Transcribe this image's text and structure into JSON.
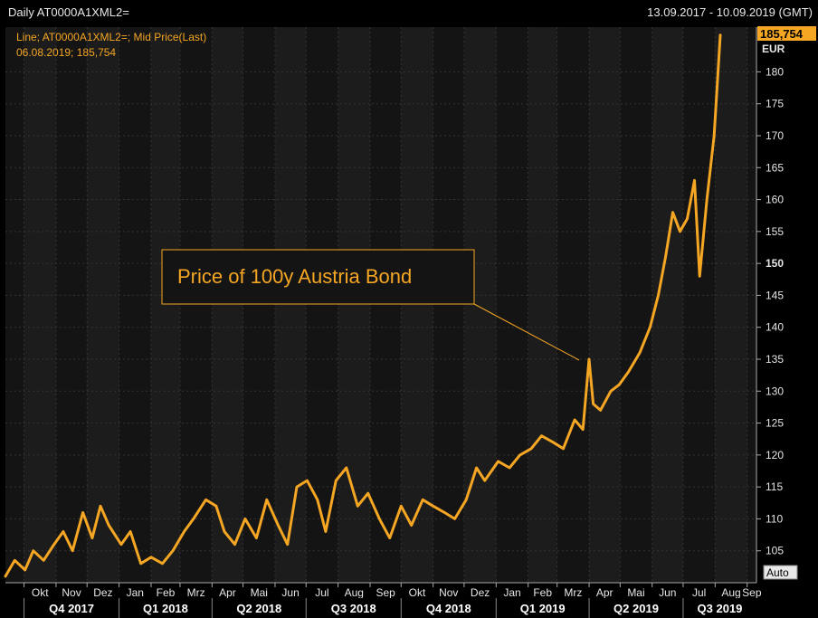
{
  "header": {
    "title": "Daily AT0000A1XML2=",
    "date_range": "13.09.2017 - 10.09.2019 (GMT)"
  },
  "legend": {
    "line1": "Line; AT0000A1XML2=; Mid Price(Last)",
    "line2": "06.08.2019; 185,754"
  },
  "last_price_badge": "185,754",
  "auto_button": "Auto",
  "colors": {
    "series": "#f5a623",
    "background": "#141414",
    "grid": "#3a3a3a",
    "badge_bg": "#f5a623"
  },
  "chart_data": {
    "type": "line",
    "title": "Daily AT0000A1XML2=",
    "ylabel": "EUR",
    "ylim": [
      100,
      187
    ],
    "yticks": [
      105,
      110,
      115,
      120,
      125,
      130,
      135,
      140,
      145,
      150,
      155,
      160,
      165,
      170,
      175,
      180
    ],
    "months": [
      "Okt",
      "Nov",
      "Dez",
      "Jan",
      "Feb",
      "Mrz",
      "Apr",
      "Mai",
      "Jun",
      "Jul",
      "Aug",
      "Sep",
      "Okt",
      "Nov",
      "Dez",
      "Jan",
      "Feb",
      "Mrz",
      "Apr",
      "Mai",
      "Jun",
      "Jul",
      "Aug",
      "Sep"
    ],
    "quarters": [
      "Q4 2017",
      "Q1 2018",
      "Q2 2018",
      "Q3 2018",
      "Q4 2018",
      "Q1 2019",
      "Q2 2019",
      "Q3 2019"
    ],
    "annotation": "Price of 100y Austria Bond",
    "series": [
      {
        "name": "Mid Price(Last)",
        "x": [
          "2017-09-13",
          "2017-09-22",
          "2017-10-02",
          "2017-10-10",
          "2017-10-20",
          "2017-10-30",
          "2017-11-08",
          "2017-11-17",
          "2017-11-27",
          "2017-12-06",
          "2017-12-14",
          "2017-12-22",
          "2018-01-03",
          "2018-01-12",
          "2018-01-22",
          "2018-02-01",
          "2018-02-12",
          "2018-02-22",
          "2018-03-05",
          "2018-03-14",
          "2018-03-26",
          "2018-04-05",
          "2018-04-13",
          "2018-04-23",
          "2018-05-03",
          "2018-05-14",
          "2018-05-24",
          "2018-06-04",
          "2018-06-13",
          "2018-06-22",
          "2018-07-02",
          "2018-07-12",
          "2018-07-20",
          "2018-07-30",
          "2018-08-09",
          "2018-08-20",
          "2018-08-30",
          "2018-09-10",
          "2018-09-20",
          "2018-10-01",
          "2018-10-11",
          "2018-10-22",
          "2018-11-01",
          "2018-11-12",
          "2018-11-22",
          "2018-12-03",
          "2018-12-13",
          "2018-12-21",
          "2019-01-03",
          "2019-01-14",
          "2019-01-24",
          "2019-02-04",
          "2019-02-14",
          "2019-02-25",
          "2019-03-07",
          "2019-03-18",
          "2019-03-26",
          "2019-04-01",
          "2019-04-05",
          "2019-04-12",
          "2019-04-22",
          "2019-04-30",
          "2019-05-09",
          "2019-05-20",
          "2019-05-30",
          "2019-06-07",
          "2019-06-14",
          "2019-06-21",
          "2019-06-28",
          "2019-07-05",
          "2019-07-12",
          "2019-07-17",
          "2019-07-24",
          "2019-07-31",
          "2019-08-06"
        ],
        "values": [
          101,
          103.5,
          102,
          105,
          103.5,
          106,
          108,
          105,
          111,
          107,
          112,
          109,
          106,
          108,
          103,
          104,
          103,
          105,
          108,
          110,
          113,
          112,
          108,
          106,
          110,
          107,
          113,
          109,
          106,
          115,
          116,
          113,
          108,
          116,
          118,
          112,
          114,
          110,
          107,
          112,
          109,
          113,
          112,
          111,
          110,
          113,
          118,
          116,
          119,
          118,
          120,
          121,
          123,
          122,
          121,
          125.5,
          124,
          135,
          128,
          127,
          130,
          131,
          133,
          136,
          140,
          145,
          151,
          158,
          155,
          157,
          163,
          148,
          160,
          170,
          185.754
        ]
      }
    ]
  }
}
